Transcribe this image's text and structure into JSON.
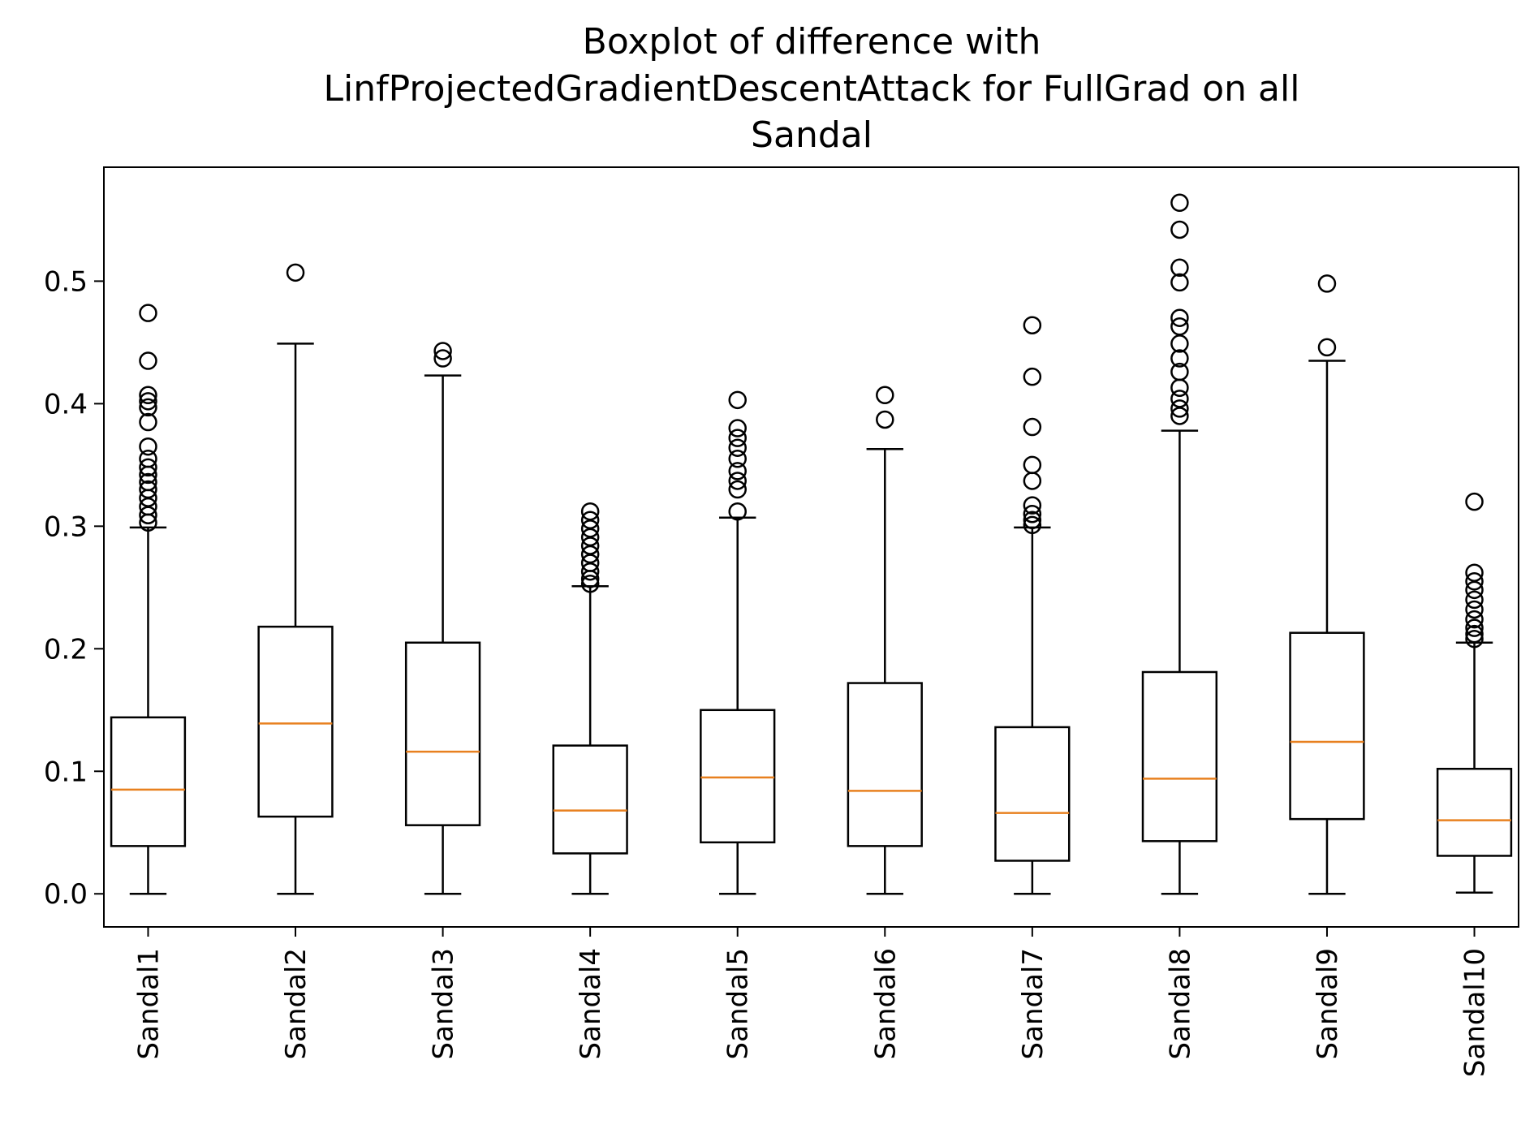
{
  "chart_data": {
    "type": "boxplot",
    "title_lines": [
      "Boxplot of difference with",
      "LinfProjectedGradientDescentAttack for FullGrad on all",
      "Sandal"
    ],
    "xlabel": "",
    "ylabel": "",
    "ylim": [
      -0.027,
      0.593
    ],
    "yticks": [
      0.0,
      0.1,
      0.2,
      0.3,
      0.4,
      0.5
    ],
    "ytick_labels": [
      "0.0",
      "0.1",
      "0.2",
      "0.3",
      "0.4",
      "0.5"
    ],
    "grid": false,
    "colors": {
      "box": "#000000",
      "median": "#e8801f",
      "background": "#ffffff"
    },
    "categories": [
      "Sandal1",
      "Sandal2",
      "Sandal3",
      "Sandal4",
      "Sandal5",
      "Sandal6",
      "Sandal7",
      "Sandal8",
      "Sandal9",
      "Sandal10"
    ],
    "boxes": [
      {
        "whislo": 0.0,
        "q1": 0.039,
        "median": 0.085,
        "q3": 0.144,
        "whishi": 0.299,
        "fliers": [
          0.474,
          0.435,
          0.407,
          0.402,
          0.397,
          0.385,
          0.365,
          0.355,
          0.348,
          0.342,
          0.336,
          0.33,
          0.323,
          0.316,
          0.309,
          0.303
        ]
      },
      {
        "whislo": 0.0,
        "q1": 0.063,
        "median": 0.139,
        "q3": 0.218,
        "whishi": 0.449,
        "fliers": [
          0.507
        ]
      },
      {
        "whislo": 0.0,
        "q1": 0.056,
        "median": 0.116,
        "q3": 0.205,
        "whishi": 0.423,
        "fliers": [
          0.443,
          0.437
        ]
      },
      {
        "whislo": 0.0,
        "q1": 0.033,
        "median": 0.068,
        "q3": 0.121,
        "whishi": 0.251,
        "fliers": [
          0.312,
          0.305,
          0.298,
          0.291,
          0.284,
          0.277,
          0.27,
          0.263,
          0.257,
          0.253
        ]
      },
      {
        "whislo": 0.0,
        "q1": 0.042,
        "median": 0.095,
        "q3": 0.15,
        "whishi": 0.307,
        "fliers": [
          0.403,
          0.38,
          0.372,
          0.364,
          0.355,
          0.345,
          0.337,
          0.33,
          0.312
        ]
      },
      {
        "whislo": 0.0,
        "q1": 0.039,
        "median": 0.084,
        "q3": 0.172,
        "whishi": 0.363,
        "fliers": [
          0.407,
          0.387
        ]
      },
      {
        "whislo": 0.0,
        "q1": 0.027,
        "median": 0.066,
        "q3": 0.136,
        "whishi": 0.299,
        "fliers": [
          0.464,
          0.422,
          0.381,
          0.35,
          0.337,
          0.317,
          0.31,
          0.305,
          0.301
        ]
      },
      {
        "whislo": 0.0,
        "q1": 0.043,
        "median": 0.094,
        "q3": 0.181,
        "whishi": 0.378,
        "fliers": [
          0.564,
          0.542,
          0.511,
          0.499,
          0.47,
          0.463,
          0.449,
          0.437,
          0.426,
          0.413,
          0.404,
          0.396,
          0.39
        ]
      },
      {
        "whislo": 0.0,
        "q1": 0.061,
        "median": 0.124,
        "q3": 0.213,
        "whishi": 0.435,
        "fliers": [
          0.498,
          0.446
        ]
      },
      {
        "whislo": 0.001,
        "q1": 0.031,
        "median": 0.06,
        "q3": 0.102,
        "whishi": 0.205,
        "fliers": [
          0.32,
          0.262,
          0.255,
          0.248,
          0.24,
          0.232,
          0.224,
          0.217,
          0.212,
          0.208
        ]
      }
    ]
  }
}
